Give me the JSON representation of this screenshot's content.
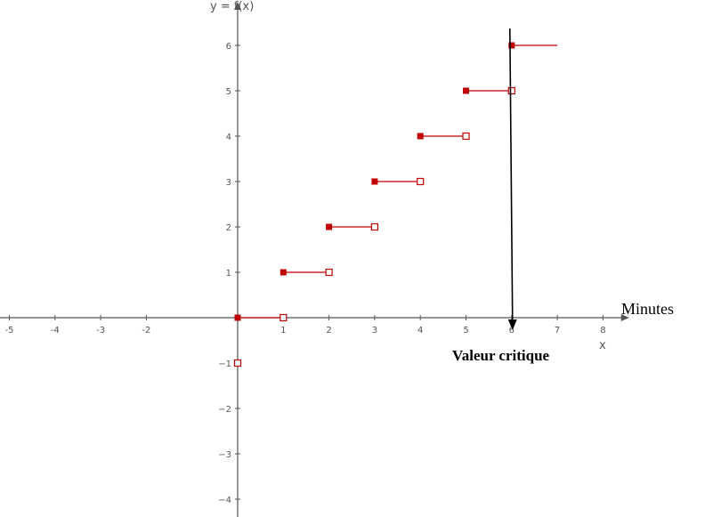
{
  "chart_data": {
    "type": "step",
    "function_label": "y = f(x)",
    "xlabel": "x",
    "x_unit_label": "Minutes",
    "xlim": [
      -5.5,
      8.3
    ],
    "ylim": [
      -4.3,
      7.0
    ],
    "x_ticks": [
      -5,
      -4,
      -3,
      -2,
      1,
      2,
      3,
      4,
      5,
      6,
      7,
      8
    ],
    "x_tick_labels": [
      "-5",
      "-4",
      "-3",
      "-2",
      "1",
      "2",
      "3",
      "4",
      "5",
      "6",
      "7",
      "8"
    ],
    "y_ticks": [
      6,
      5,
      4,
      3,
      2,
      1,
      -1,
      -2,
      -3,
      -4
    ],
    "y_tick_labels": [
      "6",
      "5",
      "4",
      "3",
      "2",
      "1",
      "−1",
      "−2",
      "−3",
      "−4"
    ],
    "segments": [
      {
        "x_start": 0,
        "x_end": 1,
        "y": 0,
        "start_closed": true,
        "end_closed": false
      },
      {
        "x_start": 1,
        "x_end": 2,
        "y": 1,
        "start_closed": true,
        "end_closed": false
      },
      {
        "x_start": 2,
        "x_end": 3,
        "y": 2,
        "start_closed": true,
        "end_closed": false
      },
      {
        "x_start": 3,
        "x_end": 4,
        "y": 3,
        "start_closed": true,
        "end_closed": false
      },
      {
        "x_start": 4,
        "x_end": 5,
        "y": 4,
        "start_closed": true,
        "end_closed": false
      },
      {
        "x_start": 5,
        "x_end": 6,
        "y": 5,
        "start_closed": true,
        "end_closed": false
      },
      {
        "x_start": 6,
        "x_end": 7,
        "y": 6,
        "start_closed": true,
        "end_closed": null
      }
    ],
    "extra_points": [
      {
        "x": 0,
        "y": -1,
        "closed": false
      }
    ],
    "critical_value": {
      "x": 6,
      "label": "Valeur critique"
    },
    "grid": false,
    "colors": {
      "series": "#c00000",
      "axes": "#555555",
      "annotation": "#000000"
    }
  }
}
